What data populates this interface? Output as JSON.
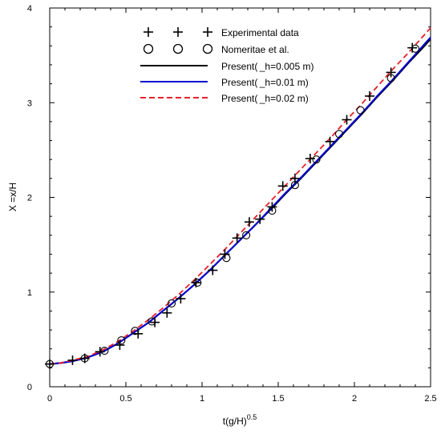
{
  "chart_data": {
    "type": "line",
    "xlabel": "t(g/H)",
    "xlabel_sup": "0.5",
    "ylabel": "X =x/H",
    "xlim": [
      0,
      2.5
    ],
    "ylim": [
      0,
      4
    ],
    "xticks": [
      0,
      0.5,
      1,
      1.5,
      2,
      2.5
    ],
    "yticks": [
      0,
      1,
      2,
      3,
      4
    ],
    "xtick_labels": [
      "0",
      "0.5",
      "1",
      "1.5",
      "2",
      "2.5"
    ],
    "ytick_labels": [
      "0",
      "1",
      "2",
      "3",
      "4"
    ],
    "legend_position": "top-center",
    "grid": false,
    "series": [
      {
        "name": "Experimental data",
        "marker": "plus",
        "color": "#000000",
        "x": [
          0.0,
          0.15,
          0.23,
          0.33,
          0.46,
          0.58,
          0.69,
          0.77,
          0.86,
          0.96,
          1.07,
          1.15,
          1.23,
          1.31,
          1.38,
          1.46,
          1.53,
          1.61,
          1.71,
          1.84,
          1.95,
          2.1,
          2.24,
          2.38
        ],
        "y": [
          0.24,
          0.28,
          0.3,
          0.37,
          0.44,
          0.56,
          0.68,
          0.78,
          0.93,
          1.1,
          1.23,
          1.4,
          1.57,
          1.74,
          1.77,
          1.9,
          2.12,
          2.2,
          2.41,
          2.59,
          2.82,
          3.07,
          3.32,
          3.58
        ]
      },
      {
        "name": "Nomeritae et al.",
        "marker": "circle",
        "color": "#000000",
        "x": [
          0.0,
          0.23,
          0.36,
          0.47,
          0.56,
          0.67,
          0.8,
          0.97,
          1.16,
          1.29,
          1.46,
          1.61,
          1.75,
          1.9,
          2.04,
          2.24,
          2.4
        ],
        "y": [
          0.24,
          0.3,
          0.38,
          0.49,
          0.59,
          0.69,
          0.88,
          1.1,
          1.36,
          1.6,
          1.86,
          2.13,
          2.4,
          2.67,
          2.92,
          3.26,
          3.57
        ]
      },
      {
        "name": "Present( _h=0.005 m)",
        "line": "solid",
        "color": "#000000",
        "x": [
          0.0,
          0.07,
          0.15,
          0.25,
          0.35,
          0.45,
          0.55,
          0.65,
          0.75,
          0.85,
          0.95,
          1.05,
          1.15,
          1.25,
          1.35,
          1.45,
          1.55,
          1.65,
          1.75,
          1.85,
          1.95,
          2.05,
          2.15,
          2.25,
          2.35,
          2.45,
          2.5
        ],
        "y": [
          0.24,
          0.25,
          0.27,
          0.31,
          0.37,
          0.46,
          0.57,
          0.68,
          0.81,
          0.94,
          1.08,
          1.23,
          1.39,
          1.55,
          1.71,
          1.87,
          2.04,
          2.2,
          2.37,
          2.54,
          2.71,
          2.88,
          3.06,
          3.23,
          3.41,
          3.58,
          3.67
        ]
      },
      {
        "name": "Present( _h=0.01 m)",
        "line": "solid",
        "color": "#0000cc",
        "x": [
          0.0,
          0.07,
          0.15,
          0.25,
          0.35,
          0.45,
          0.55,
          0.65,
          0.75,
          0.85,
          0.95,
          1.05,
          1.15,
          1.25,
          1.35,
          1.45,
          1.55,
          1.65,
          1.75,
          1.85,
          1.95,
          2.05,
          2.15,
          2.25,
          2.35,
          2.45,
          2.5
        ],
        "y": [
          0.24,
          0.25,
          0.27,
          0.31,
          0.37,
          0.46,
          0.57,
          0.68,
          0.81,
          0.94,
          1.08,
          1.23,
          1.39,
          1.55,
          1.71,
          1.88,
          2.05,
          2.21,
          2.38,
          2.55,
          2.72,
          2.89,
          3.07,
          3.24,
          3.42,
          3.6,
          3.69
        ]
      },
      {
        "name": "Present( _h=0.02 m)",
        "line": "dashed",
        "color": "#e8202a",
        "x": [
          0.0,
          0.07,
          0.15,
          0.25,
          0.35,
          0.45,
          0.55,
          0.65,
          0.75,
          0.85,
          0.95,
          1.05,
          1.15,
          1.25,
          1.35,
          1.45,
          1.55,
          1.65,
          1.75,
          1.85,
          1.95,
          2.05,
          2.15,
          2.25,
          2.35,
          2.45,
          2.5
        ],
        "y": [
          0.24,
          0.25,
          0.28,
          0.32,
          0.39,
          0.48,
          0.59,
          0.71,
          0.84,
          0.98,
          1.13,
          1.29,
          1.45,
          1.62,
          1.79,
          1.96,
          2.13,
          2.3,
          2.47,
          2.64,
          2.82,
          2.99,
          3.17,
          3.35,
          3.52,
          3.7,
          3.79
        ]
      }
    ]
  }
}
